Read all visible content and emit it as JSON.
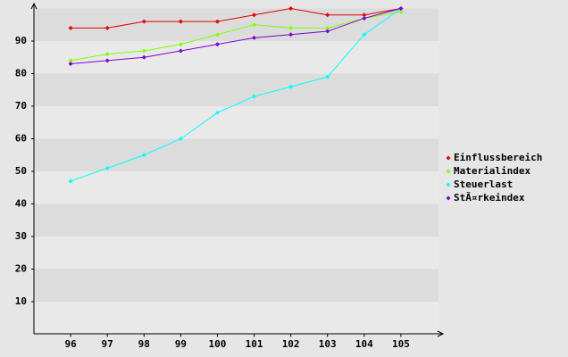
{
  "chart_data": {
    "type": "line",
    "x": [
      96,
      97,
      98,
      99,
      100,
      101,
      102,
      103,
      104,
      105
    ],
    "xlim": [
      95,
      106
    ],
    "xticks": [
      96,
      97,
      98,
      99,
      100,
      101,
      102,
      103,
      104,
      105
    ],
    "ylim": [
      0,
      100
    ],
    "yticks": [
      10,
      20,
      30,
      40,
      50,
      60,
      70,
      80,
      90
    ],
    "grid": true,
    "legend": "right",
    "series": [
      {
        "name": "Einflussbereich",
        "color": "#e00000",
        "values": [
          94,
          94,
          96,
          96,
          96,
          98,
          100,
          98,
          98,
          100
        ]
      },
      {
        "name": "Materialindex",
        "color": "#80ff00",
        "values": [
          84,
          86,
          87,
          89,
          92,
          95,
          94,
          94,
          97,
          99
        ]
      },
      {
        "name": "Steuerlast",
        "color": "#00ffff",
        "values": [
          47,
          51,
          55,
          60,
          68,
          73,
          76,
          79,
          92,
          100
        ]
      },
      {
        "name": "StÃ¤rkeindex",
        "color": "#8000d0",
        "values": [
          83,
          84,
          85,
          87,
          89,
          91,
          92,
          93,
          97,
          100
        ]
      }
    ]
  }
}
